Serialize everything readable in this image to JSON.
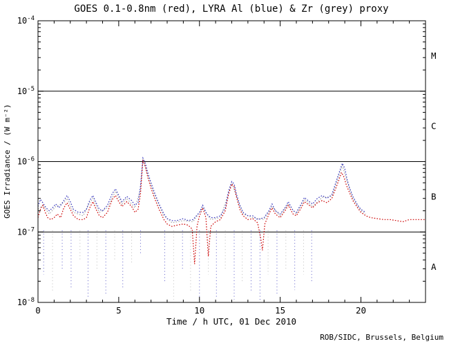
{
  "chart_data": {
    "type": "line",
    "title": "GOES 0.1-0.8nm (red), LYRA Al (blue) & Zr (grey) proxy",
    "xlabel": "Time / h UTC, 01 Dec 2010",
    "ylabel": "GOES Irradiance / (W m⁻²)",
    "credit": "ROB/SIDC, Brussels, Belgium",
    "xlim": [
      0,
      24
    ],
    "ylim_log": [
      -4,
      -8
    ],
    "xticks_major": [
      0,
      5,
      10,
      15,
      20
    ],
    "xtick_minor_step": 1,
    "ytick_decades": [
      -4,
      -5,
      -6,
      -7,
      -8
    ],
    "hlines_log": [
      -5,
      -6,
      -7
    ],
    "band_labels": [
      {
        "label": "M",
        "log": -4.5
      },
      {
        "label": "C",
        "log": -5.5
      },
      {
        "label": "B",
        "log": -6.5
      },
      {
        "label": "A",
        "log": -7.5
      }
    ],
    "colors": {
      "red": "#cc0000",
      "blue": "#3333bb",
      "grey": "#aaaaaa",
      "axis": "#000000"
    },
    "series": [
      {
        "name": "LYRA Zr proxy",
        "color_key": "grey",
        "points": [
          [
            0,
            2.1e-07
          ],
          [
            0.3,
            2.4e-07
          ],
          [
            0.7,
            1.8e-07
          ],
          [
            1.1,
            2.3e-07
          ],
          [
            1.6,
            2.6e-07
          ],
          [
            1.8,
            3e-07
          ],
          [
            2.2,
            1.9e-07
          ],
          [
            2.8,
            1.7e-07
          ],
          [
            3.2,
            2.6e-07
          ],
          [
            3.4,
            3e-07
          ],
          [
            3.8,
            1.9e-07
          ],
          [
            4.3,
            2.2e-07
          ],
          [
            4.8,
            3.8e-07
          ],
          [
            5.2,
            2.5e-07
          ],
          [
            5.5,
            3e-07
          ],
          [
            6.0,
            2.2e-07
          ],
          [
            6.35,
            4e-07
          ],
          [
            6.5,
            1.08e-06
          ],
          [
            6.8,
            6.5e-07
          ],
          [
            7.2,
            3.4e-07
          ],
          [
            7.8,
            1.7e-07
          ],
          [
            8.3,
            1.35e-07
          ],
          [
            9.0,
            1.45e-07
          ],
          [
            9.6,
            1.4e-07
          ],
          [
            10.2,
            2.2e-07
          ],
          [
            10.7,
            1.5e-07
          ],
          [
            11.3,
            1.6e-07
          ],
          [
            11.8,
            3.5e-07
          ],
          [
            12.0,
            4.9e-07
          ],
          [
            12.3,
            3.2e-07
          ],
          [
            12.7,
            1.8e-07
          ],
          [
            13.3,
            1.6e-07
          ],
          [
            14.0,
            1.5e-07
          ],
          [
            14.5,
            2.3e-07
          ],
          [
            15.0,
            1.7e-07
          ],
          [
            15.5,
            2.5e-07
          ],
          [
            16.0,
            1.8e-07
          ],
          [
            16.5,
            2.9e-07
          ],
          [
            17.0,
            2.3e-07
          ],
          [
            17.6,
            3.1e-07
          ],
          [
            18.2,
            3.2e-07
          ],
          [
            18.85,
            8.8e-07
          ],
          [
            19.15,
            5.2e-07
          ],
          [
            19.5,
            3e-07
          ],
          [
            20.0,
            2e-07
          ],
          [
            20.3,
            1.8e-07
          ]
        ]
      },
      {
        "name": "LYRA Al proxy",
        "color_key": "blue",
        "points": [
          [
            0,
            2.3e-07
          ],
          [
            0.15,
            2.9e-07
          ],
          [
            0.3,
            2.6e-07
          ],
          [
            0.5,
            2.2e-07
          ],
          [
            0.7,
            2e-07
          ],
          [
            0.9,
            2.2e-07
          ],
          [
            1.1,
            2.5e-07
          ],
          [
            1.3,
            2.2e-07
          ],
          [
            1.6,
            2.8e-07
          ],
          [
            1.8,
            3.3e-07
          ],
          [
            2.0,
            2.7e-07
          ],
          [
            2.2,
            2.1e-07
          ],
          [
            2.5,
            1.9e-07
          ],
          [
            2.8,
            1.9e-07
          ],
          [
            3.0,
            2.1e-07
          ],
          [
            3.2,
            2.8e-07
          ],
          [
            3.4,
            3.3e-07
          ],
          [
            3.6,
            2.6e-07
          ],
          [
            3.8,
            2.1e-07
          ],
          [
            4.0,
            2e-07
          ],
          [
            4.3,
            2.4e-07
          ],
          [
            4.6,
            3.5e-07
          ],
          [
            4.8,
            4.1e-07
          ],
          [
            5.0,
            3.3e-07
          ],
          [
            5.2,
            2.7e-07
          ],
          [
            5.5,
            3.2e-07
          ],
          [
            5.8,
            2.8e-07
          ],
          [
            6.0,
            2.4e-07
          ],
          [
            6.2,
            2.6e-07
          ],
          [
            6.35,
            4.5e-07
          ],
          [
            6.5,
            1.12e-06
          ],
          [
            6.65,
            9.5e-07
          ],
          [
            6.8,
            7e-07
          ],
          [
            7.0,
            5e-07
          ],
          [
            7.2,
            3.7e-07
          ],
          [
            7.5,
            2.5e-07
          ],
          [
            7.8,
            1.8e-07
          ],
          [
            8.0,
            1.55e-07
          ],
          [
            8.3,
            1.45e-07
          ],
          [
            8.6,
            1.45e-07
          ],
          [
            9.0,
            1.55e-07
          ],
          [
            9.3,
            1.45e-07
          ],
          [
            9.6,
            1.5e-07
          ],
          [
            10.0,
            1.9e-07
          ],
          [
            10.2,
            2.4e-07
          ],
          [
            10.45,
            1.8e-07
          ],
          [
            10.7,
            1.6e-07
          ],
          [
            11.0,
            1.6e-07
          ],
          [
            11.3,
            1.7e-07
          ],
          [
            11.6,
            2.2e-07
          ],
          [
            11.8,
            3.8e-07
          ],
          [
            12.0,
            5.2e-07
          ],
          [
            12.15,
            4.8e-07
          ],
          [
            12.3,
            3.4e-07
          ],
          [
            12.5,
            2.4e-07
          ],
          [
            12.7,
            1.9e-07
          ],
          [
            13.0,
            1.7e-07
          ],
          [
            13.3,
            1.7e-07
          ],
          [
            13.6,
            1.5e-07
          ],
          [
            14.0,
            1.6e-07
          ],
          [
            14.3,
            2e-07
          ],
          [
            14.5,
            2.5e-07
          ],
          [
            14.7,
            2e-07
          ],
          [
            15.0,
            1.8e-07
          ],
          [
            15.3,
            2.2e-07
          ],
          [
            15.5,
            2.7e-07
          ],
          [
            15.8,
            2e-07
          ],
          [
            16.0,
            1.9e-07
          ],
          [
            16.3,
            2.5e-07
          ],
          [
            16.5,
            3.1e-07
          ],
          [
            16.8,
            2.7e-07
          ],
          [
            17.0,
            2.5e-07
          ],
          [
            17.3,
            3e-07
          ],
          [
            17.6,
            3.3e-07
          ],
          [
            17.9,
            3e-07
          ],
          [
            18.2,
            3.4e-07
          ],
          [
            18.5,
            5.5e-07
          ],
          [
            18.85,
            9.5e-07
          ],
          [
            19.0,
            8e-07
          ],
          [
            19.15,
            5.5e-07
          ],
          [
            19.3,
            4.2e-07
          ],
          [
            19.5,
            3.2e-07
          ],
          [
            19.8,
            2.4e-07
          ],
          [
            20.0,
            2.1e-07
          ],
          [
            20.3,
            1.9e-07
          ]
        ]
      },
      {
        "name": "GOES 0.1-0.8nm",
        "color_key": "red",
        "points": [
          [
            0,
            1.6e-07
          ],
          [
            0.15,
            2.1e-07
          ],
          [
            0.3,
            2.4e-07
          ],
          [
            0.45,
            1.9e-07
          ],
          [
            0.6,
            1.6e-07
          ],
          [
            0.8,
            1.5e-07
          ],
          [
            1.0,
            1.6e-07
          ],
          [
            1.2,
            1.8e-07
          ],
          [
            1.4,
            1.6e-07
          ],
          [
            1.6,
            2.2e-07
          ],
          [
            1.8,
            2.6e-07
          ],
          [
            2.0,
            2.1e-07
          ],
          [
            2.2,
            1.7e-07
          ],
          [
            2.5,
            1.5e-07
          ],
          [
            2.8,
            1.5e-07
          ],
          [
            3.0,
            1.6e-07
          ],
          [
            3.2,
            2.2e-07
          ],
          [
            3.4,
            2.7e-07
          ],
          [
            3.6,
            2.1e-07
          ],
          [
            3.8,
            1.7e-07
          ],
          [
            4.0,
            1.6e-07
          ],
          [
            4.3,
            1.9e-07
          ],
          [
            4.6,
            2.9e-07
          ],
          [
            4.8,
            3.3e-07
          ],
          [
            5.0,
            2.7e-07
          ],
          [
            5.2,
            2.3e-07
          ],
          [
            5.5,
            2.7e-07
          ],
          [
            5.8,
            2.3e-07
          ],
          [
            6.0,
            1.9e-07
          ],
          [
            6.2,
            2.1e-07
          ],
          [
            6.35,
            3.5e-07
          ],
          [
            6.5,
            1.05e-06
          ],
          [
            6.65,
            8.5e-07
          ],
          [
            6.8,
            6e-07
          ],
          [
            7.0,
            4.2e-07
          ],
          [
            7.2,
            3.1e-07
          ],
          [
            7.5,
            2.1e-07
          ],
          [
            7.8,
            1.5e-07
          ],
          [
            8.0,
            1.3e-07
          ],
          [
            8.3,
            1.2e-07
          ],
          [
            8.6,
            1.25e-07
          ],
          [
            9.0,
            1.3e-07
          ],
          [
            9.3,
            1.25e-07
          ],
          [
            9.55,
            1.1e-07
          ],
          [
            9.7,
            3.5e-08
          ],
          [
            9.85,
            1.2e-07
          ],
          [
            10.0,
            1.7e-07
          ],
          [
            10.2,
            2.2e-07
          ],
          [
            10.4,
            1.6e-07
          ],
          [
            10.55,
            4.5e-08
          ],
          [
            10.7,
            1.2e-07
          ],
          [
            11.0,
            1.4e-07
          ],
          [
            11.3,
            1.5e-07
          ],
          [
            11.6,
            2e-07
          ],
          [
            11.8,
            3.4e-07
          ],
          [
            12.0,
            4.8e-07
          ],
          [
            12.15,
            4.4e-07
          ],
          [
            12.3,
            3.1e-07
          ],
          [
            12.5,
            2.1e-07
          ],
          [
            12.7,
            1.7e-07
          ],
          [
            13.0,
            1.5e-07
          ],
          [
            13.3,
            1.55e-07
          ],
          [
            13.6,
            1.35e-07
          ],
          [
            13.8,
            8e-08
          ],
          [
            13.9,
            5.5e-08
          ],
          [
            14.05,
            1.3e-07
          ],
          [
            14.3,
            1.8e-07
          ],
          [
            14.5,
            2.2e-07
          ],
          [
            14.7,
            1.8e-07
          ],
          [
            15.0,
            1.6e-07
          ],
          [
            15.3,
            2e-07
          ],
          [
            15.5,
            2.4e-07
          ],
          [
            15.8,
            1.8e-07
          ],
          [
            16.0,
            1.7e-07
          ],
          [
            16.3,
            2.2e-07
          ],
          [
            16.5,
            2.7e-07
          ],
          [
            16.8,
            2.4e-07
          ],
          [
            17.0,
            2.2e-07
          ],
          [
            17.3,
            2.6e-07
          ],
          [
            17.6,
            2.8e-07
          ],
          [
            17.9,
            2.6e-07
          ],
          [
            18.2,
            3e-07
          ],
          [
            18.5,
            4.5e-07
          ],
          [
            18.8,
            7e-07
          ],
          [
            18.95,
            6e-07
          ],
          [
            19.1,
            4.6e-07
          ],
          [
            19.3,
            3.6e-07
          ],
          [
            19.5,
            2.8e-07
          ],
          [
            19.8,
            2.2e-07
          ],
          [
            20.0,
            1.9e-07
          ],
          [
            20.3,
            1.7e-07
          ],
          [
            20.6,
            1.6e-07
          ],
          [
            21.0,
            1.55e-07
          ],
          [
            21.4,
            1.5e-07
          ],
          [
            21.8,
            1.5e-07
          ],
          [
            22.2,
            1.45e-07
          ],
          [
            22.6,
            1.4e-07
          ],
          [
            23.0,
            1.5e-07
          ],
          [
            23.4,
            1.5e-07
          ],
          [
            23.8,
            1.5e-07
          ],
          [
            24.0,
            1.5e-07
          ]
        ]
      }
    ],
    "dropouts": [
      {
        "x": 0.35,
        "top": 1.05e-07,
        "bottom": 2.5e-08,
        "color_key": "blue"
      },
      {
        "x": 0.9,
        "top": 1.05e-07,
        "bottom": 1.4e-08,
        "color_key": "grey"
      },
      {
        "x": 1.5,
        "top": 1.05e-07,
        "bottom": 3e-08,
        "color_key": "blue"
      },
      {
        "x": 2.05,
        "top": 1.05e-07,
        "bottom": 1.6e-08,
        "color_key": "blue"
      },
      {
        "x": 2.6,
        "top": 1.05e-07,
        "bottom": 4e-08,
        "color_key": "grey"
      },
      {
        "x": 3.1,
        "top": 1.05e-07,
        "bottom": 1.2e-08,
        "color_key": "blue"
      },
      {
        "x": 3.65,
        "top": 1.05e-07,
        "bottom": 3e-08,
        "color_key": "grey"
      },
      {
        "x": 4.2,
        "top": 1.05e-07,
        "bottom": 1.3e-08,
        "color_key": "blue"
      },
      {
        "x": 4.75,
        "top": 1.05e-07,
        "bottom": 4e-08,
        "color_key": "grey"
      },
      {
        "x": 5.25,
        "top": 1.05e-07,
        "bottom": 1.6e-08,
        "color_key": "blue"
      },
      {
        "x": 5.8,
        "top": 1.05e-07,
        "bottom": 3.5e-08,
        "color_key": "grey"
      },
      {
        "x": 6.35,
        "top": 1.05e-07,
        "bottom": 5e-08,
        "color_key": "blue"
      },
      {
        "x": 7.85,
        "top": 1.05e-07,
        "bottom": 2e-08,
        "color_key": "blue"
      },
      {
        "x": 8.4,
        "top": 1.05e-07,
        "bottom": 1.1e-08,
        "color_key": "grey"
      },
      {
        "x": 8.95,
        "top": 1.05e-07,
        "bottom": 3e-08,
        "color_key": "blue"
      },
      {
        "x": 9.45,
        "top": 1.05e-07,
        "bottom": 1.4e-08,
        "color_key": "grey"
      },
      {
        "x": 10.0,
        "top": 1.05e-07,
        "bottom": 1.1e-08,
        "color_key": "blue"
      },
      {
        "x": 10.55,
        "top": 1.05e-07,
        "bottom": 2.5e-08,
        "color_key": "grey"
      },
      {
        "x": 11.05,
        "top": 1.05e-07,
        "bottom": 1.2e-08,
        "color_key": "blue"
      },
      {
        "x": 11.6,
        "top": 1.05e-07,
        "bottom": 3e-08,
        "color_key": "grey"
      },
      {
        "x": 12.15,
        "top": 1.05e-07,
        "bottom": 1.1e-08,
        "color_key": "blue"
      },
      {
        "x": 12.65,
        "top": 1.05e-07,
        "bottom": 2e-08,
        "color_key": "grey"
      },
      {
        "x": 13.2,
        "top": 1.05e-07,
        "bottom": 1.4e-08,
        "color_key": "blue"
      },
      {
        "x": 13.75,
        "top": 1.05e-07,
        "bottom": 1.05e-08,
        "color_key": "blue"
      },
      {
        "x": 14.25,
        "top": 1.05e-07,
        "bottom": 2.5e-08,
        "color_key": "grey"
      },
      {
        "x": 14.8,
        "top": 1.05e-07,
        "bottom": 1.3e-08,
        "color_key": "blue"
      },
      {
        "x": 15.35,
        "top": 1.05e-07,
        "bottom": 3e-08,
        "color_key": "grey"
      },
      {
        "x": 15.9,
        "top": 1.05e-07,
        "bottom": 1.5e-08,
        "color_key": "blue"
      },
      {
        "x": 16.45,
        "top": 1.05e-07,
        "bottom": 2.5e-08,
        "color_key": "grey"
      },
      {
        "x": 16.95,
        "top": 1.05e-07,
        "bottom": 1.9e-08,
        "color_key": "blue"
      }
    ]
  }
}
